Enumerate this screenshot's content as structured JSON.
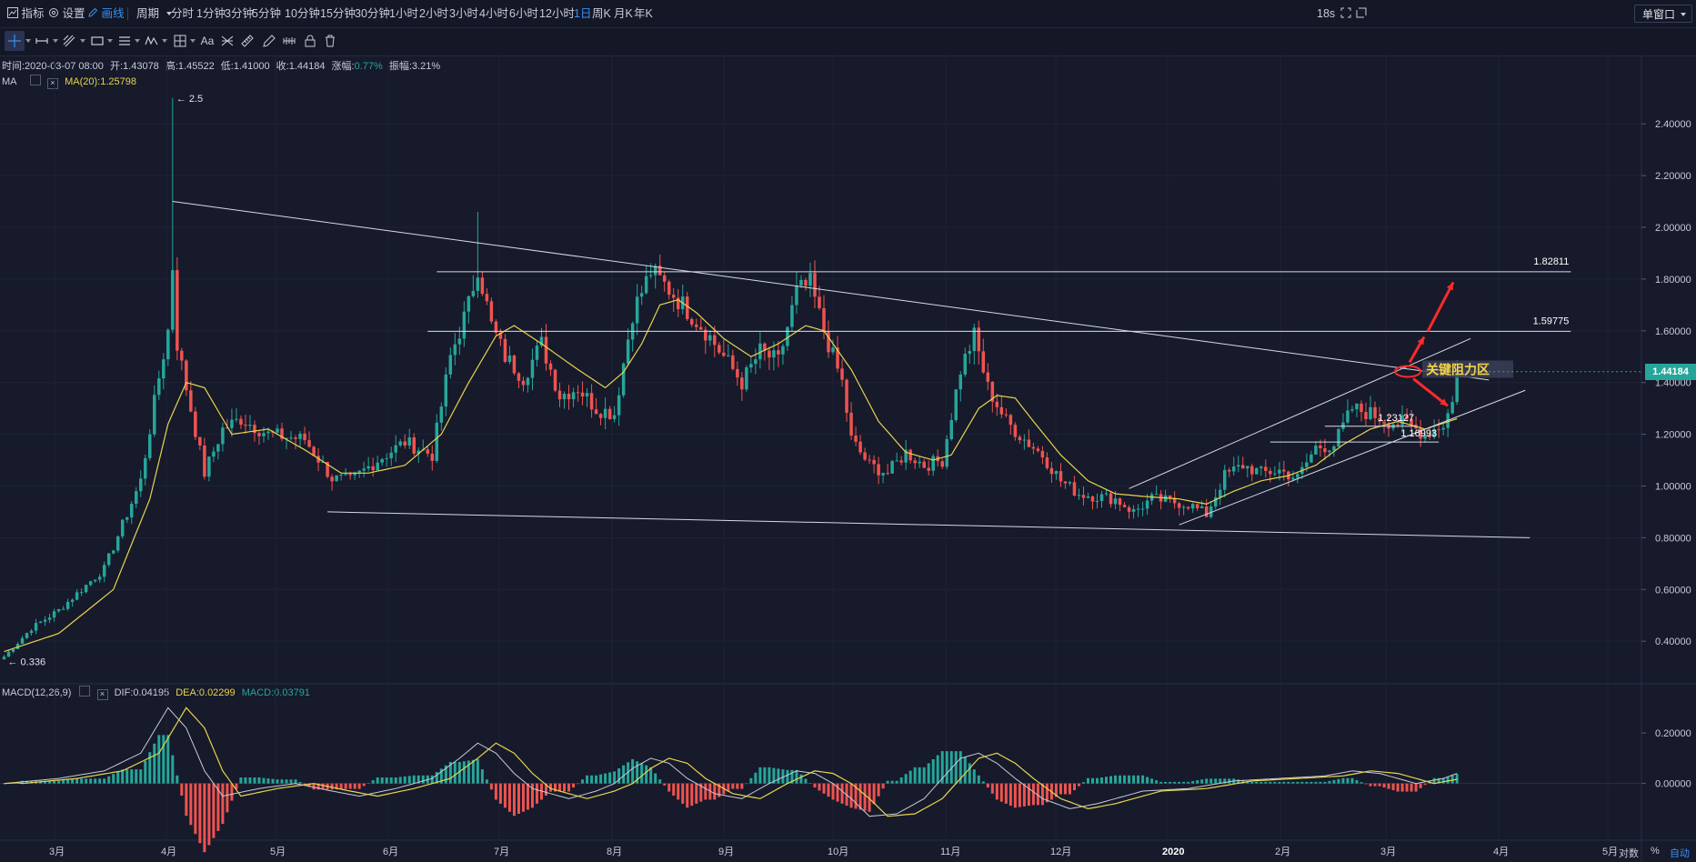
{
  "top": {
    "indicators_label": "指标",
    "settings_label": "设置",
    "draw_label": "画线",
    "period_label": "周期",
    "periods": [
      "分时",
      "1分钟",
      "3分钟",
      "5分钟",
      "10分钟",
      "15分钟",
      "30分钟",
      "1小时",
      "2小时",
      "3小时",
      "4小时",
      "6小时",
      "12小时",
      "1日",
      "周K",
      "月K",
      "年K"
    ],
    "active_period": "1日",
    "countdown": "18s",
    "window_mode": "单窗口"
  },
  "toolbar_icons": [
    "crosshair-icon",
    "horizontal-segment-icon",
    "trend-lines-icon",
    "rectangle-icon",
    "parallel-lines-icon",
    "wave-icon",
    "grid-icon",
    "text-tool-icon",
    "fib-icon",
    "ruler-icon",
    "pencil-icon",
    "pattern-icon",
    "lock-icon",
    "trash-icon"
  ],
  "toolbar_text_tool": "Aa",
  "info": {
    "time": "时间:2020-03-07 08:00",
    "open": "开:1.43078",
    "high": "高:1.45522",
    "low": "低:1.41000",
    "close": "收:1.44184",
    "change_label": "涨幅:",
    "change_value": "0.77%",
    "amplitude": "振幅:3.21%",
    "ma_label": "MA",
    "ma_value": "MA(20):1.25798"
  },
  "macd_info": {
    "label": "MACD(12,26,9)",
    "dif": "DIF:0.04195",
    "dea": "DEA:0.02299",
    "macd": "MACD:0.03791"
  },
  "colors": {
    "background": "#161a2b",
    "up": "#26a69a",
    "down": "#ef5350",
    "ma": "#e8d44d",
    "dif": "#c8cbd6",
    "dea": "#e8d44d",
    "annotation": "#ff2a2a"
  },
  "chart_data": {
    "type": "candlestick",
    "title": "",
    "price_axis": {
      "ticks": [
        "2.40000",
        "2.20000",
        "2.00000",
        "1.80000",
        "1.60000",
        "1.40000",
        "1.20000",
        "1.00000",
        "0.80000",
        "0.60000",
        "0.40000"
      ],
      "ylim": [
        0.26,
        2.58
      ]
    },
    "macd_axis": {
      "ticks": [
        "0.20000",
        "0.00000"
      ],
      "ylim": [
        -0.21,
        0.33
      ]
    },
    "x_ticks": [
      "3月",
      "4月",
      "5月",
      "6月",
      "7月",
      "8月",
      "9月",
      "10月",
      "11月",
      "12月",
      "2020",
      "2月",
      "3月",
      "4月",
      "5月"
    ],
    "current_price": "1.44184",
    "price_path": [
      [
        0,
        0.34
      ],
      [
        6,
        0.45
      ],
      [
        12,
        0.52
      ],
      [
        22,
        0.68
      ],
      [
        30,
        1.02
      ],
      [
        34,
        1.42
      ],
      [
        36,
        1.6
      ],
      [
        37,
        1.85
      ],
      [
        38,
        1.55
      ],
      [
        40,
        1.38
      ],
      [
        44,
        1.05
      ],
      [
        48,
        1.22
      ],
      [
        52,
        1.26
      ],
      [
        58,
        1.2
      ],
      [
        66,
        1.18
      ],
      [
        72,
        1.03
      ],
      [
        76,
        1.02
      ],
      [
        82,
        1.1
      ],
      [
        88,
        1.17
      ],
      [
        94,
        1.12
      ],
      [
        98,
        1.5
      ],
      [
        102,
        1.7
      ],
      [
        104,
        1.85
      ],
      [
        107,
        1.62
      ],
      [
        110,
        1.5
      ],
      [
        114,
        1.42
      ],
      [
        118,
        1.55
      ],
      [
        122,
        1.35
      ],
      [
        126,
        1.38
      ],
      [
        130,
        1.3
      ],
      [
        134,
        1.28
      ],
      [
        138,
        1.67
      ],
      [
        142,
        1.83
      ],
      [
        146,
        1.76
      ],
      [
        150,
        1.68
      ],
      [
        154,
        1.6
      ],
      [
        158,
        1.5
      ],
      [
        162,
        1.4
      ],
      [
        166,
        1.52
      ],
      [
        170,
        1.48
      ],
      [
        174,
        1.75
      ],
      [
        177,
        1.78
      ],
      [
        180,
        1.6
      ],
      [
        184,
        1.4
      ],
      [
        186,
        1.18
      ],
      [
        190,
        1.08
      ],
      [
        194,
        1.05
      ],
      [
        198,
        1.13
      ],
      [
        202,
        1.08
      ],
      [
        206,
        1.1
      ],
      [
        210,
        1.45
      ],
      [
        213,
        1.58
      ],
      [
        216,
        1.38
      ],
      [
        220,
        1.25
      ],
      [
        224,
        1.18
      ],
      [
        228,
        1.12
      ],
      [
        232,
        1.02
      ],
      [
        236,
        0.97
      ],
      [
        240,
        0.96
      ],
      [
        244,
        0.95
      ],
      [
        248,
        0.9
      ],
      [
        252,
        0.95
      ],
      [
        256,
        0.94
      ],
      [
        260,
        0.93
      ],
      [
        264,
        0.89
      ],
      [
        268,
        1.04
      ],
      [
        272,
        1.08
      ],
      [
        276,
        1.05
      ],
      [
        280,
        1.06
      ],
      [
        284,
        1.03
      ],
      [
        288,
        1.15
      ],
      [
        292,
        1.16
      ],
      [
        296,
        1.3
      ],
      [
        300,
        1.28
      ],
      [
        304,
        1.25
      ],
      [
        308,
        1.24
      ],
      [
        312,
        1.2
      ],
      [
        316,
        1.24
      ],
      [
        318,
        1.32
      ],
      [
        319,
        1.44
      ]
    ],
    "spikes": [
      {
        "index": 37,
        "high": 2.5,
        "label": "2.5"
      },
      {
        "index": 104,
        "high": 2.06
      },
      {
        "index": 0,
        "low": 0.336,
        "label": "0.336"
      }
    ],
    "ma20": [
      [
        0,
        0.36
      ],
      [
        12,
        0.43
      ],
      [
        24,
        0.6
      ],
      [
        32,
        0.95
      ],
      [
        36,
        1.24
      ],
      [
        40,
        1.4
      ],
      [
        44,
        1.38
      ],
      [
        50,
        1.2
      ],
      [
        58,
        1.22
      ],
      [
        66,
        1.14
      ],
      [
        74,
        1.05
      ],
      [
        80,
        1.05
      ],
      [
        88,
        1.08
      ],
      [
        96,
        1.2
      ],
      [
        102,
        1.4
      ],
      [
        108,
        1.58
      ],
      [
        112,
        1.62
      ],
      [
        118,
        1.55
      ],
      [
        126,
        1.45
      ],
      [
        132,
        1.38
      ],
      [
        136,
        1.44
      ],
      [
        140,
        1.55
      ],
      [
        144,
        1.7
      ],
      [
        148,
        1.72
      ],
      [
        152,
        1.67
      ],
      [
        158,
        1.57
      ],
      [
        164,
        1.5
      ],
      [
        170,
        1.55
      ],
      [
        176,
        1.62
      ],
      [
        180,
        1.6
      ],
      [
        186,
        1.45
      ],
      [
        192,
        1.25
      ],
      [
        198,
        1.13
      ],
      [
        204,
        1.1
      ],
      [
        208,
        1.12
      ],
      [
        214,
        1.3
      ],
      [
        218,
        1.35
      ],
      [
        222,
        1.34
      ],
      [
        226,
        1.25
      ],
      [
        232,
        1.12
      ],
      [
        238,
        1.02
      ],
      [
        244,
        0.97
      ],
      [
        250,
        0.96
      ],
      [
        258,
        0.95
      ],
      [
        264,
        0.93
      ],
      [
        270,
        0.98
      ],
      [
        276,
        1.02
      ],
      [
        282,
        1.04
      ],
      [
        288,
        1.08
      ],
      [
        294,
        1.16
      ],
      [
        300,
        1.22
      ],
      [
        306,
        1.25
      ],
      [
        312,
        1.22
      ],
      [
        319,
        1.26
      ]
    ],
    "drawn_lines": {
      "upper_trendline": {
        "from": [
          37,
          2.1
        ],
        "to": [
          326,
          1.41
        ]
      },
      "lower_trendline": {
        "from": [
          71,
          0.9
        ],
        "to": [
          335,
          0.8
        ]
      },
      "resistance_1": {
        "from": [
          95,
          1.828
        ],
        "to": [
          344,
          1.828
        ],
        "label": "1.82811"
      },
      "resistance_2": {
        "from": [
          93,
          1.598
        ],
        "to": [
          344,
          1.598
        ],
        "label": "1.59775"
      },
      "channel_upper": {
        "from": [
          247,
          0.99
        ],
        "to": [
          322,
          1.57
        ]
      },
      "channel_lower": {
        "from": [
          258,
          0.85
        ],
        "to": [
          334,
          1.37
        ]
      },
      "level_1": {
        "from": [
          290,
          1.231
        ],
        "to": [
          310,
          1.231
        ],
        "label": "1.23127"
      },
      "level_2": {
        "from": [
          278,
          1.17
        ],
        "to": [
          315,
          1.17
        ],
        "label": "1.16993"
      }
    },
    "annotation": {
      "text": "关键阻力区",
      "at": [
        307,
        1.45
      ]
    },
    "macd_path": [
      [
        0,
        0.0
      ],
      [
        12,
        0.02
      ],
      [
        22,
        0.05
      ],
      [
        30,
        0.12
      ],
      [
        36,
        0.3
      ],
      [
        40,
        0.22
      ],
      [
        44,
        0.05
      ],
      [
        48,
        -0.05
      ],
      [
        56,
        -0.02
      ],
      [
        64,
        0.0
      ],
      [
        72,
        -0.03
      ],
      [
        78,
        -0.05
      ],
      [
        86,
        -0.02
      ],
      [
        94,
        0.02
      ],
      [
        100,
        0.1
      ],
      [
        104,
        0.16
      ],
      [
        108,
        0.12
      ],
      [
        112,
        0.04
      ],
      [
        116,
        -0.02
      ],
      [
        124,
        -0.06
      ],
      [
        130,
        -0.03
      ],
      [
        134,
        0.0
      ],
      [
        138,
        0.06
      ],
      [
        142,
        0.1
      ],
      [
        146,
        0.08
      ],
      [
        150,
        0.02
      ],
      [
        156,
        -0.04
      ],
      [
        162,
        -0.06
      ],
      [
        168,
        0.0
      ],
      [
        174,
        0.05
      ],
      [
        178,
        0.04
      ],
      [
        182,
        0.0
      ],
      [
        186,
        -0.06
      ],
      [
        190,
        -0.13
      ],
      [
        196,
        -0.12
      ],
      [
        202,
        -0.06
      ],
      [
        206,
        0.02
      ],
      [
        210,
        0.1
      ],
      [
        214,
        0.12
      ],
      [
        218,
        0.08
      ],
      [
        222,
        0.02
      ],
      [
        228,
        -0.06
      ],
      [
        234,
        -0.1
      ],
      [
        240,
        -0.08
      ],
      [
        250,
        -0.03
      ],
      [
        260,
        -0.02
      ],
      [
        270,
        0.01
      ],
      [
        280,
        0.02
      ],
      [
        290,
        0.03
      ],
      [
        296,
        0.05
      ],
      [
        302,
        0.04
      ],
      [
        310,
        0.0
      ],
      [
        316,
        0.02
      ],
      [
        319,
        0.04
      ]
    ]
  }
}
